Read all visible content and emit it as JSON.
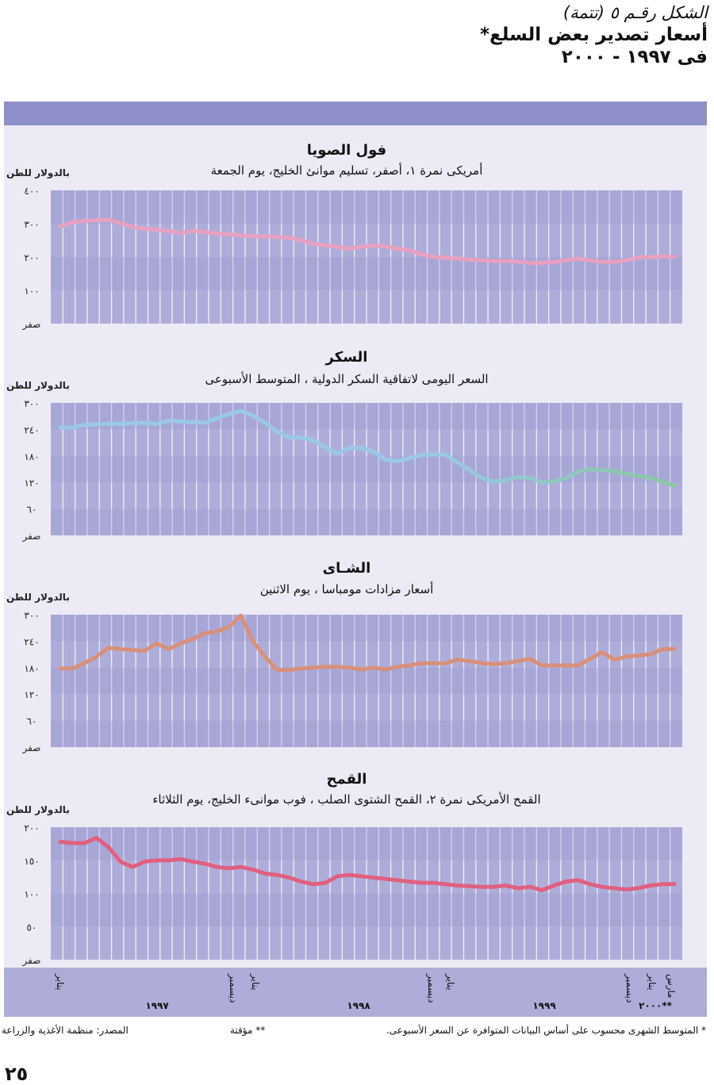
{
  "figure": {
    "caption": "الشكل رقـم ٥ (تتمة)",
    "title": "أسعار تصدير بعض السلع*",
    "period": "فى ١٩٩٧ - ٢٠٠٠"
  },
  "colors": {
    "band": "#8f8fc9",
    "panel": "#aeadda",
    "background": "#eceaf4",
    "soybean_line": "#e8a0c0",
    "sugar_line_start": "#9ac8e8",
    "sugar_line_end": "#88c8a0",
    "tea_line": "#d8907a",
    "wheat_line": "#e06080"
  },
  "chart_data": [
    {
      "type": "line",
      "title": "فول الصويا",
      "subtitle": "أمريكى نمرة ١، أصفر، تسليم موانئ الخليج، يوم الجمعة",
      "ylabel": "بالدولار للطن",
      "yticks": [
        "٤٠٠",
        "٣٠٠",
        "٢٠٠",
        "١٠٠",
        "صفر"
      ],
      "ylim": [
        0,
        400
      ],
      "values": [
        290,
        305,
        308,
        310,
        312,
        302,
        290,
        285,
        282,
        278,
        272,
        278,
        275,
        270,
        268,
        265,
        262,
        262,
        260,
        258,
        250,
        240,
        235,
        230,
        225,
        230,
        235,
        232,
        225,
        220,
        208,
        200,
        198,
        195,
        192,
        190,
        188,
        188,
        186,
        182,
        182,
        185,
        190,
        195,
        190,
        185,
        185,
        190,
        198,
        200,
        202,
        200
      ]
    },
    {
      "type": "line",
      "title": "السكر",
      "subtitle": "السعر اليومى لاتفاقية السكر الدولية ، المتوسط الأسبوعى",
      "ylabel": "بالدولار للطن",
      "yticks": [
        "٣٠٠",
        "٢٤٠",
        "١٨٠",
        "١٢٠",
        "٦٠",
        "صفر"
      ],
      "ylim": [
        0,
        300
      ],
      "values": [
        245,
        244,
        250,
        252,
        253,
        253,
        254,
        255,
        252,
        260,
        258,
        256,
        255,
        265,
        275,
        282,
        272,
        255,
        235,
        222,
        222,
        215,
        200,
        185,
        198,
        198,
        190,
        172,
        168,
        175,
        182,
        183,
        183,
        165,
        148,
        130,
        122,
        125,
        132,
        130,
        120,
        122,
        130,
        145,
        150,
        148,
        145,
        140,
        135,
        130,
        122,
        112
      ]
    },
    {
      "type": "line",
      "title": "الشـاى",
      "subtitle": "أسعار مزادات مومباسا ، يوم الاثنين",
      "ylabel": "بالدولار للطن",
      "yticks": [
        "٣٠٠",
        "٢٤٠",
        "١٨٠",
        "١٢٠",
        "٦٠",
        "صفر"
      ],
      "ylim": [
        0,
        300
      ],
      "values": [
        178,
        178,
        190,
        205,
        225,
        222,
        220,
        218,
        235,
        222,
        235,
        245,
        258,
        262,
        272,
        298,
        240,
        205,
        175,
        175,
        178,
        180,
        182,
        182,
        180,
        176,
        180,
        176,
        182,
        185,
        190,
        190,
        190,
        198,
        195,
        190,
        188,
        190,
        195,
        200,
        185,
        185,
        185,
        185,
        200,
        215,
        198,
        205,
        208,
        210,
        222,
        222
      ]
    },
    {
      "type": "line",
      "title": "القمح",
      "subtitle": "القمح الأمريكى نمرة ٢، القمح الشتوى الصلب ، فوب موانىء الخليج، يوم الثلاثاء",
      "ylabel": "بالدولار للطن",
      "yticks": [
        "٢٠٠",
        "١٥٠",
        "١٠٠",
        "٥٠",
        "صفر"
      ],
      "ylim": [
        0,
        200
      ],
      "values": [
        178,
        176,
        176,
        184,
        170,
        148,
        140,
        148,
        150,
        150,
        152,
        148,
        145,
        140,
        138,
        140,
        136,
        130,
        128,
        124,
        118,
        114,
        116,
        126,
        128,
        126,
        124,
        122,
        120,
        118,
        116,
        116,
        114,
        112,
        111,
        110,
        110,
        112,
        108,
        110,
        105,
        112,
        118,
        120,
        114,
        110,
        108,
        106,
        108,
        112,
        114,
        114
      ]
    }
  ],
  "x_axis": {
    "month_labels": [
      "يناير",
      "ديسمبر",
      "يناير",
      "ديسمبر",
      "يناير",
      "ديسمبر",
      "يناير",
      "مارس"
    ],
    "year_labels": [
      "١٩٩٧",
      "١٩٩٨",
      "١٩٩٩",
      "٢٠٠٠**"
    ]
  },
  "footer": {
    "note_monthly": "* المتوسط الشهرى محسوب على أساس البيانات المتوافرة عن السعر الأسبوعى.",
    "note_provisional": "** مؤقتة",
    "source": "المصدر: منظمة الأغذية والزراعة"
  },
  "page_number": "٢٥"
}
